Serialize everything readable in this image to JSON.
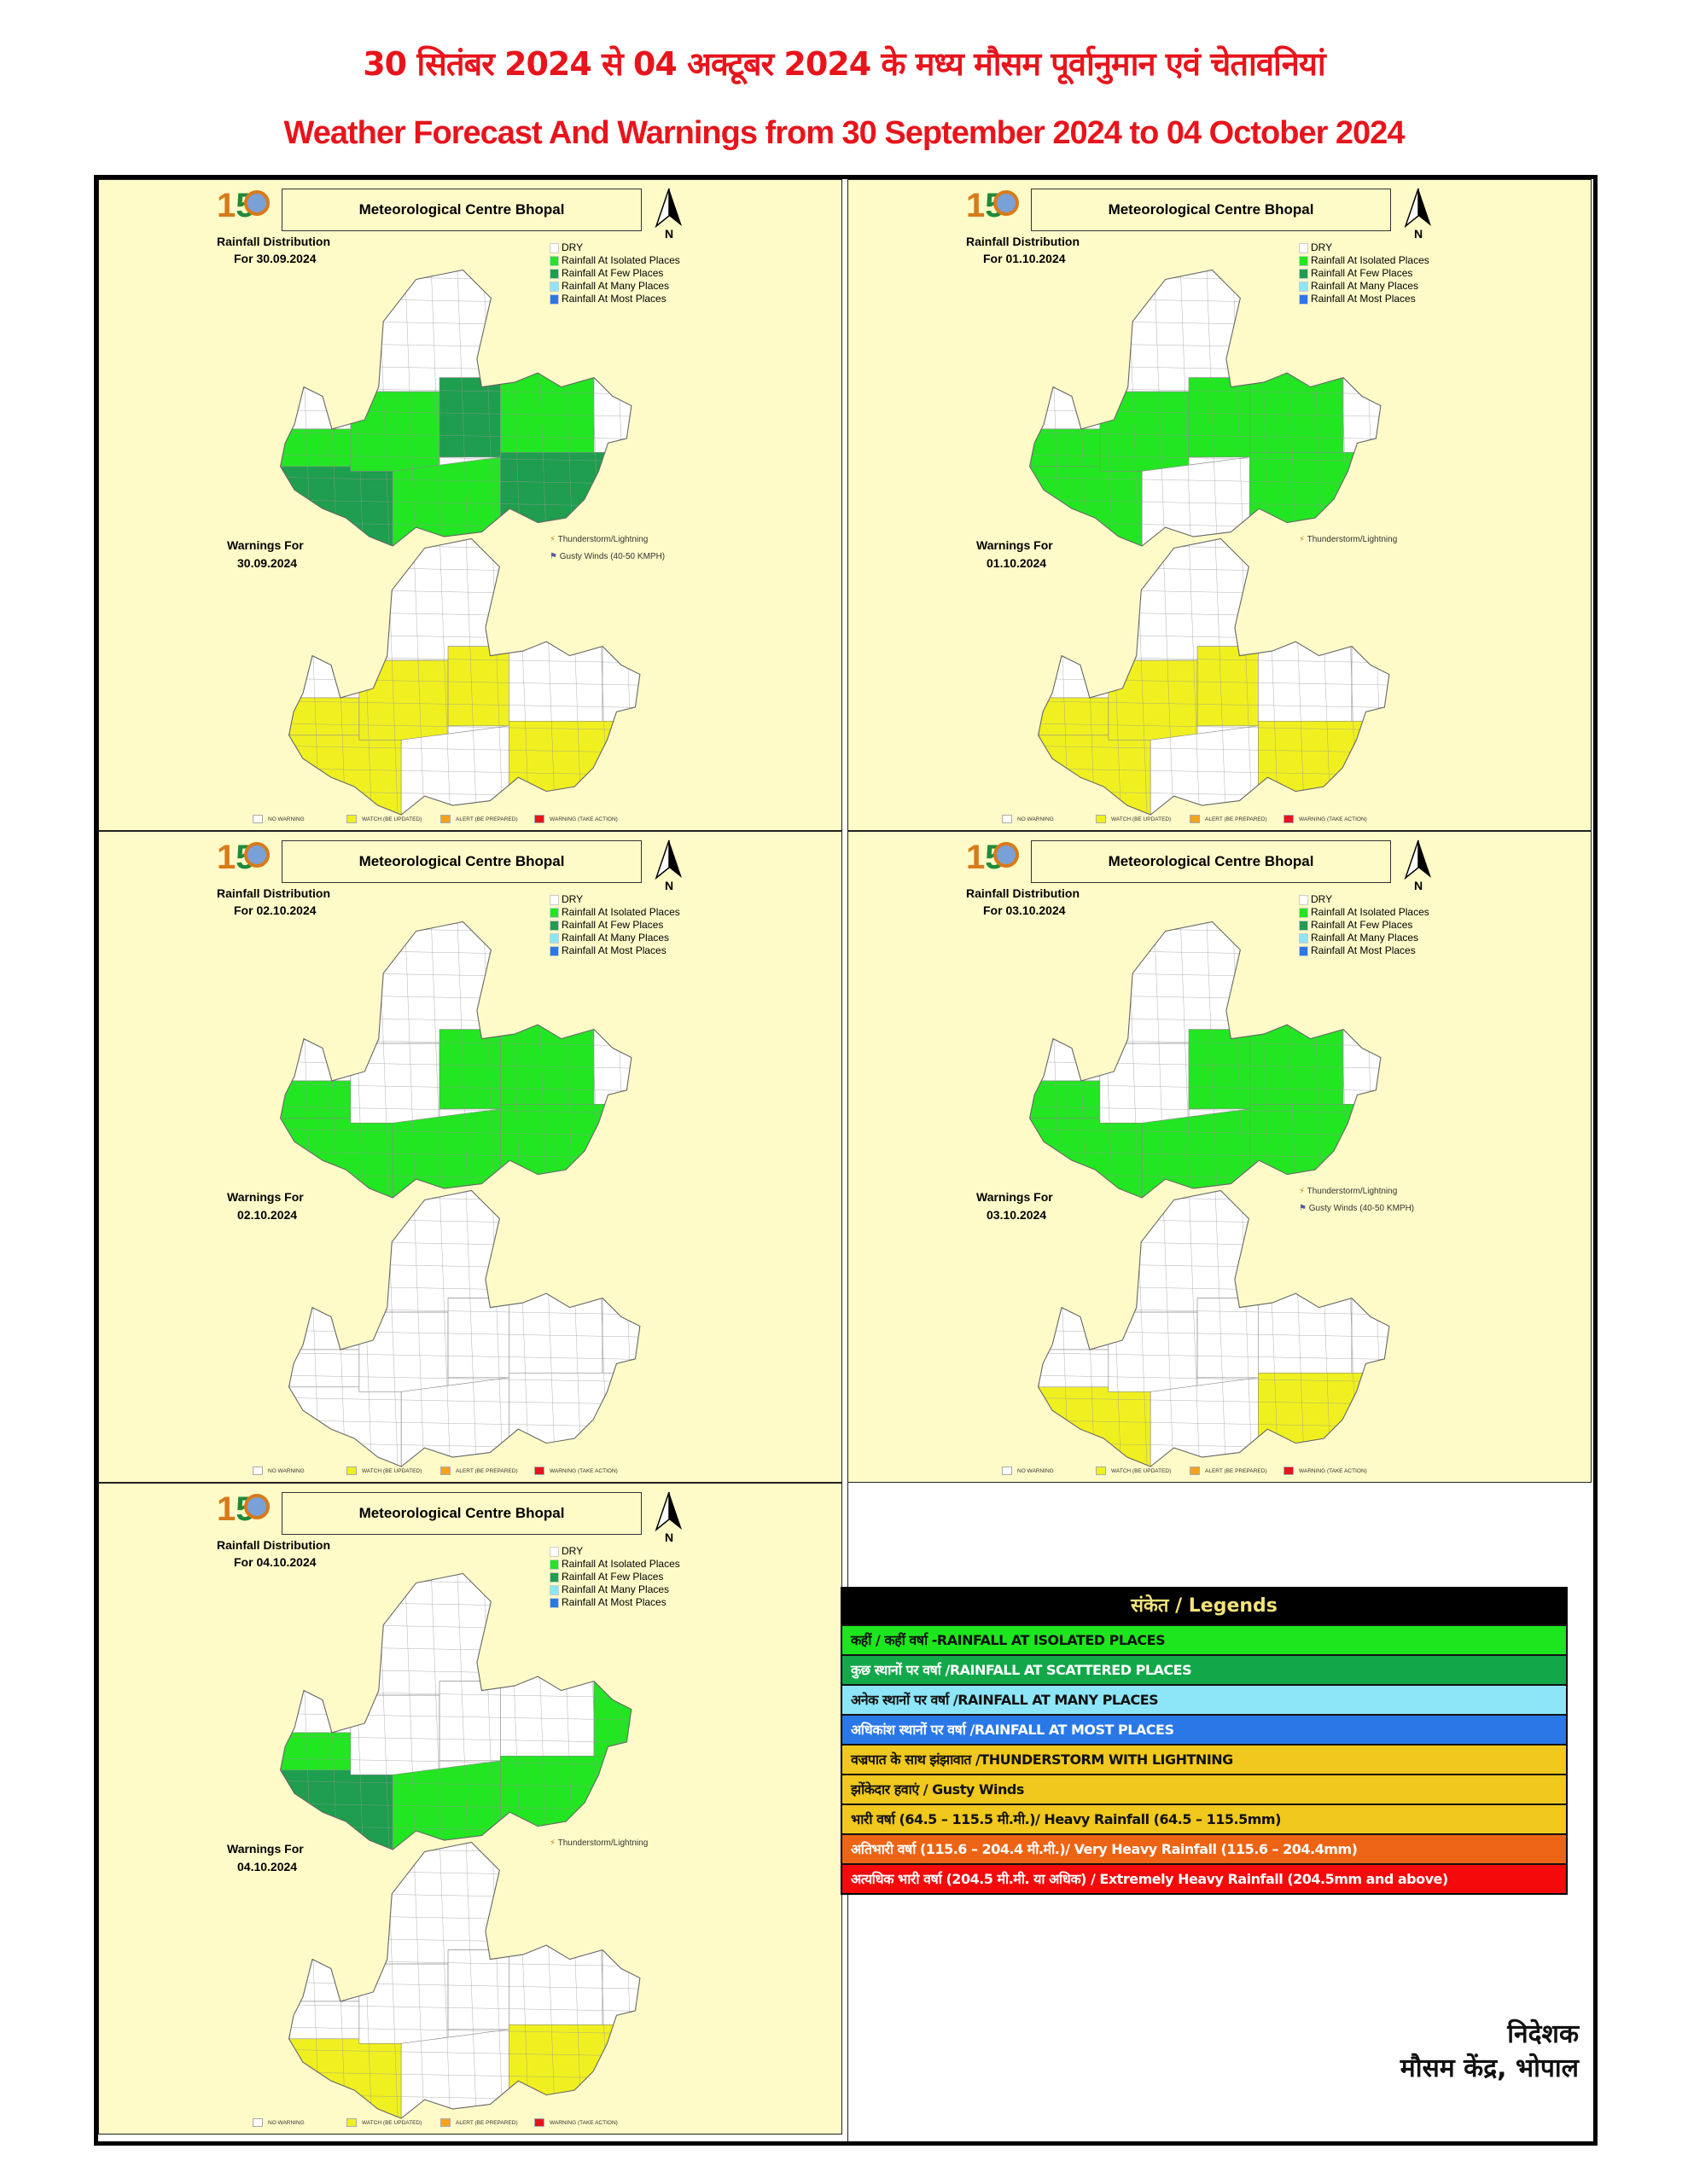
{
  "header": {
    "title_hindi": "30 सितंबर 2024 से 04 अक्टूबर 2024 के मध्य मौसम पूर्वानुमान एवं चेतावनियां",
    "title_english": "Weather Forecast And Warnings from 30 September 2024 to 04 October 2024"
  },
  "panel_common": {
    "centre_title": "Meteorological Centre Bhopal",
    "north_label": "N",
    "rainfall_heading": "Rainfall Distribution",
    "warnings_heading": "Warnings For",
    "rain_legend": [
      {
        "label": "DRY",
        "color": "#ffffff"
      },
      {
        "label": "Rainfall At Isolated Places",
        "color": "#22e622"
      },
      {
        "label": "Rainfall At Few Places",
        "color": "#1e9e4e"
      },
      {
        "label": "Rainfall At Many Places",
        "color": "#8de6f7"
      },
      {
        "label": "Rainfall At Most Places",
        "color": "#2a78e8"
      }
    ],
    "warning_symbols": {
      "thunderstorm": "Thunderstorm/Lightning",
      "gusty": "Gusty Winds (40-50 KMPH)"
    },
    "warning_legend": [
      {
        "label": "NO WARNING",
        "color": "#ffffff"
      },
      {
        "label": "WATCH (BE UPDATED)",
        "color": "#f0f020"
      },
      {
        "label": "ALERT (BE PREPARED)",
        "color": "#f7a21b"
      },
      {
        "label": "WARNING (TAKE ACTION)",
        "color": "#e8141c"
      }
    ]
  },
  "panels": [
    {
      "rain_date": "For 30.09.2024",
      "warn_date": "30.09.2024",
      "thunderstorm": true,
      "gusty": true
    },
    {
      "rain_date": "For 01.10.2024",
      "warn_date": "01.10.2024",
      "thunderstorm": true,
      "gusty": false
    },
    {
      "rain_date": "For 02.10.2024",
      "warn_date": "02.10.2024",
      "thunderstorm": false,
      "gusty": false
    },
    {
      "rain_date": "For 03.10.2024",
      "warn_date": "03.10.2024",
      "thunderstorm": true,
      "gusty": true
    },
    {
      "rain_date": "For 04.10.2024",
      "warn_date": "04.10.2024",
      "thunderstorm": true,
      "gusty": false
    }
  ],
  "legend": {
    "heading": "संकेत / Legends",
    "rows": [
      {
        "label": "कहीं / कहीं वर्षा -RAINFALL AT ISOLATED PLACES",
        "color": "#1ee61e",
        "text_color": "#111111"
      },
      {
        "label": "कुछ स्थानों पर वर्षा  /RAINFALL AT SCATTERED PLACES",
        "color": "#12a84a",
        "text_color": "#ffffff"
      },
      {
        "label": "अनेक स्थानों पर वर्षा  /RAINFALL AT MANY PLACES",
        "color": "#8de6f7",
        "text_color": "#111111"
      },
      {
        "label": "अधिकांश स्थानों पर वर्षा  /RAINFALL AT MOST PLACES",
        "color": "#2a78e8",
        "text_color": "#ffffff"
      },
      {
        "label": "वज्रपात के साथ झंझावात  /THUNDERSTORM WITH LIGHTNING",
        "color": "#f0c81e",
        "text_color": "#111111"
      },
      {
        "label": "झोंकेदार हवाएं / Gusty Winds",
        "color": "#f0c81e",
        "text_color": "#111111"
      },
      {
        "label": "भारी वर्षा (64.5 – 115.5 मी.मी.)/ Heavy Rainfall (64.5 – 115.5mm)",
        "color": "#f0c81e",
        "text_color": "#111111"
      },
      {
        "label": "अतिभारी वर्षा (115.6 – 204.4 मी.मी.)/ Very Heavy Rainfall (115.6 – 204.4mm)",
        "color": "#ec6414",
        "text_color": "#ffffff"
      },
      {
        "label": "अत्यधिक भारी वर्षा (204.5 मी.मी. या अधिक) / Extremely Heavy Rainfall (204.5mm and above)",
        "color": "#f40a0a",
        "text_color": "#ffffff"
      }
    ]
  },
  "signature": {
    "line1": "निदेशक",
    "line2": "मौसम केंद्र, भोपाल"
  }
}
